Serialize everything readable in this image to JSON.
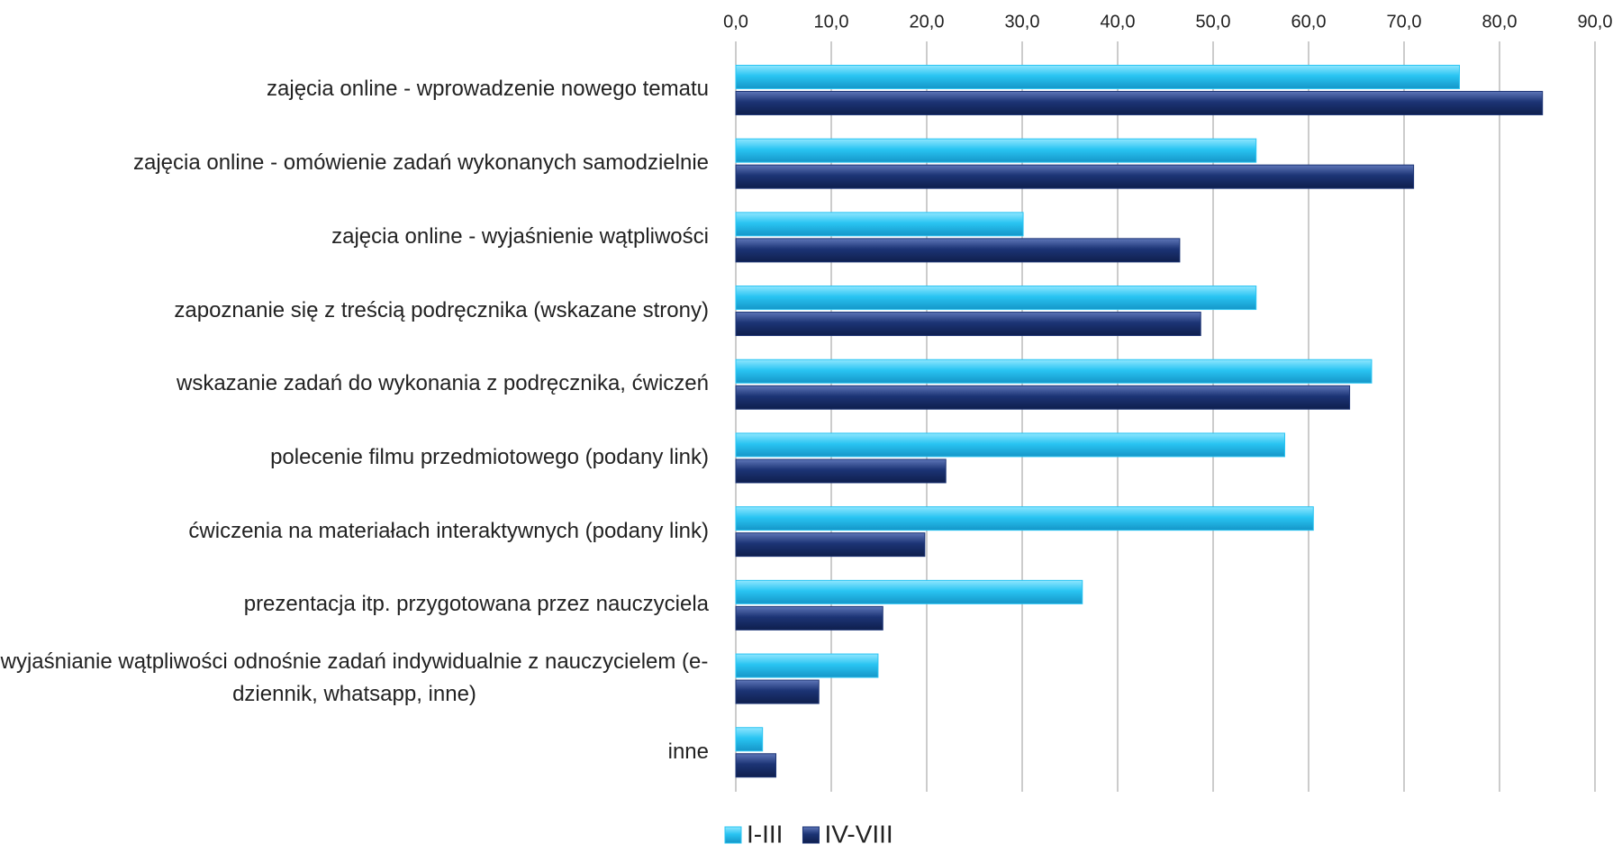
{
  "chart_data": {
    "type": "hbar",
    "categories": [
      "zajęcia online - wprowadzenie nowego tematu",
      "zajęcia online - omówienie zadań wykonanych samodzielnie",
      "zajęcia online - wyjaśnienie wątpliwości",
      "zapoznanie się z treścią podręcznika (wskazane strony)",
      "wskazanie zadań do wykonania z podręcznika, ćwiczeń",
      "polecenie filmu przedmiotowego (podany link)",
      "ćwiczenia na materiałach interaktywnych (podany link)",
      "prezentacja itp. przygotowana przez nauczyciela",
      "wyjaśnianie wątpliwości odnośnie zadań indywidualnie z nauczycielem (e-dziennik, whatsapp, inne)",
      "inne"
    ],
    "series": [
      {
        "name": "I-III",
        "color": "#29c4f2",
        "values": [
          75.8,
          54.5,
          30.1,
          54.5,
          66.6,
          57.5,
          60.5,
          36.3,
          14.9,
          2.8
        ]
      },
      {
        "name": "IV-VIII",
        "color": "#1c3475",
        "values": [
          84.5,
          71.0,
          46.5,
          48.7,
          64.3,
          22.0,
          19.8,
          15.4,
          8.7,
          4.2
        ]
      }
    ],
    "xlim": [
      0,
      90
    ],
    "xticks": [
      {
        "value": 0,
        "label": "0,0"
      },
      {
        "value": 10,
        "label": "10,0"
      },
      {
        "value": 20,
        "label": "20,0"
      },
      {
        "value": 30,
        "label": "30,0"
      },
      {
        "value": 40,
        "label": "40,0"
      },
      {
        "value": 50,
        "label": "50,0"
      },
      {
        "value": 60,
        "label": "60,0"
      },
      {
        "value": 70,
        "label": "70,0"
      },
      {
        "value": 80,
        "label": "80,0"
      },
      {
        "value": 90,
        "label": "90,0"
      }
    ],
    "grid": true,
    "legend": "bottom"
  }
}
